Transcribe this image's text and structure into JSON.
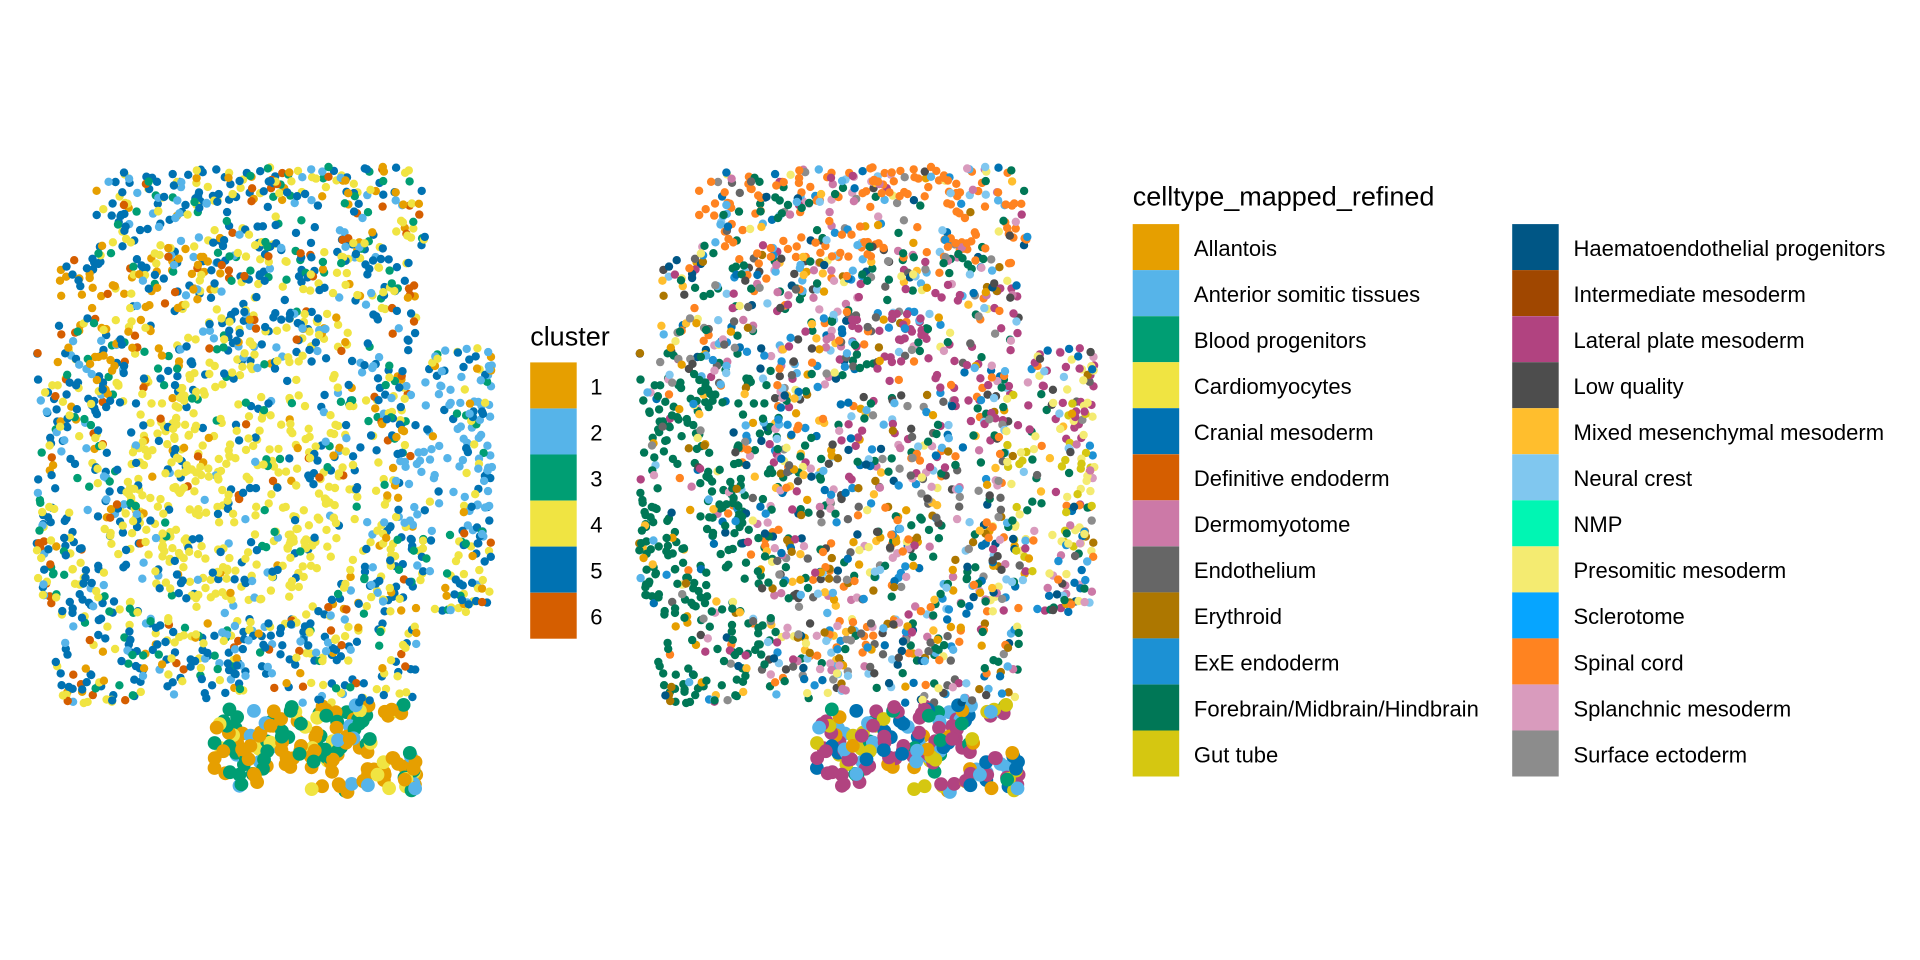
{
  "chart_data": [
    {
      "type": "scatter",
      "title": "",
      "xlabel": "",
      "ylabel": "",
      "axes": "none",
      "grid": false,
      "legend": {
        "title": "cluster",
        "placement": "right"
      },
      "series": [
        {
          "name": "1",
          "color": "#E69F00"
        },
        {
          "name": "2",
          "color": "#56B4E9"
        },
        {
          "name": "3",
          "color": "#009E73"
        },
        {
          "name": "4",
          "color": "#F0E442"
        },
        {
          "name": "5",
          "color": "#0072B2"
        },
        {
          "name": "6",
          "color": "#D55E00"
        }
      ]
    },
    {
      "type": "scatter",
      "title": "",
      "xlabel": "",
      "ylabel": "",
      "axes": "none",
      "grid": false,
      "legend": {
        "title": "celltype_mapped_refined",
        "placement": "right",
        "columns": 2
      },
      "series": [
        {
          "name": "Allantois",
          "color": "#E69F00"
        },
        {
          "name": "Anterior somitic tissues",
          "color": "#56B4E9"
        },
        {
          "name": "Blood progenitors",
          "color": "#009E73"
        },
        {
          "name": "Cardiomyocytes",
          "color": "#F0E442"
        },
        {
          "name": "Cranial mesoderm",
          "color": "#0072B2"
        },
        {
          "name": "Definitive endoderm",
          "color": "#D55E00"
        },
        {
          "name": "Dermomyotome",
          "color": "#CC79A7"
        },
        {
          "name": "Endothelium",
          "color": "#666666"
        },
        {
          "name": "Erythroid",
          "color": "#AD7700"
        },
        {
          "name": "ExE endoderm",
          "color": "#1C91D4"
        },
        {
          "name": "Forebrain/Midbrain/Hindbrain",
          "color": "#007756"
        },
        {
          "name": "Gut tube",
          "color": "#D5C711"
        },
        {
          "name": "Haematoendothelial progenitors",
          "color": "#005685"
        },
        {
          "name": "Intermediate mesoderm",
          "color": "#A04700"
        },
        {
          "name": "Lateral plate mesoderm",
          "color": "#B14380"
        },
        {
          "name": "Low quality",
          "color": "#4D4D4D"
        },
        {
          "name": "Mixed mesenchymal mesoderm",
          "color": "#FFBE2D"
        },
        {
          "name": "Neural crest",
          "color": "#80C7EF"
        },
        {
          "name": "NMP",
          "color": "#00F6B3"
        },
        {
          "name": "Presomitic mesoderm",
          "color": "#F4EB71"
        },
        {
          "name": "Sclerotome",
          "color": "#06A5FF"
        },
        {
          "name": "Spinal cord",
          "color": "#FF8320"
        },
        {
          "name": "Splanchnic mesoderm",
          "color": "#D99BBD"
        },
        {
          "name": "Surface ectoderm",
          "color": "#8C8C8C"
        }
      ]
    }
  ]
}
